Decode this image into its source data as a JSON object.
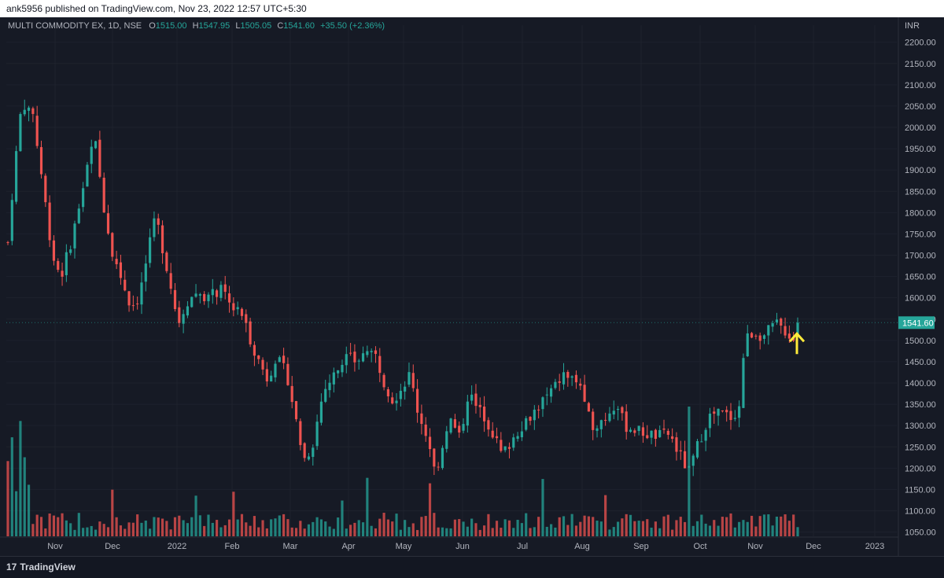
{
  "header": {
    "published_text": "ank5956 published on TradingView.com, Nov 23, 2022 12:57 UTC+5:30"
  },
  "legend": {
    "symbol": "MULTI COMMODITY EX, 1D, NSE",
    "o_label": "O",
    "o_value": "1515.00",
    "h_label": "H",
    "h_value": "1547.95",
    "l_label": "L",
    "l_value": "1505.05",
    "c_label": "C",
    "c_value": "1541.60",
    "change": "+35.50 (+2.36%)"
  },
  "footer": {
    "brand": "TradingView",
    "brand_mark": "17"
  },
  "colors": {
    "up": "#26a69a",
    "down": "#ef5350",
    "background": "#161a25",
    "grid": "#1e222d",
    "text": "#b2b5be",
    "arrow": "#ffeb3b"
  },
  "chart_data": {
    "type": "candlestick",
    "currency": "INR",
    "last_price": "1541.60",
    "ylim": [
      1040,
      2240
    ],
    "y_ticks": [
      1050,
      1100,
      1150,
      1200,
      1250,
      1300,
      1350,
      1400,
      1450,
      1500,
      1550,
      1600,
      1650,
      1700,
      1750,
      1800,
      1850,
      1900,
      1950,
      2000,
      2050,
      2100,
      2150,
      2200
    ],
    "x_ticks": [
      "Nov",
      "Dec",
      "2022",
      "Feb",
      "Mar",
      "Apr",
      "May",
      "Jun",
      "Jul",
      "Aug",
      "Sep",
      "Oct",
      "Nov",
      "Dec",
      "2023"
    ],
    "price_path": [
      {
        "day": 0,
        "close": 1730
      },
      {
        "day": 2,
        "close": 1880
      },
      {
        "day": 5,
        "close": 2060
      },
      {
        "day": 9,
        "close": 2030
      },
      {
        "day": 12,
        "close": 1890
      },
      {
        "day": 16,
        "close": 1700
      },
      {
        "day": 19,
        "close": 1650
      },
      {
        "day": 23,
        "close": 1740
      },
      {
        "day": 27,
        "close": 1860
      },
      {
        "day": 31,
        "close": 1980
      },
      {
        "day": 34,
        "close": 1830
      },
      {
        "day": 37,
        "close": 1720
      },
      {
        "day": 41,
        "close": 1640
      },
      {
        "day": 44,
        "close": 1580
      },
      {
        "day": 47,
        "close": 1600
      },
      {
        "day": 50,
        "close": 1700
      },
      {
        "day": 53,
        "close": 1790
      },
      {
        "day": 56,
        "close": 1700
      },
      {
        "day": 58,
        "close": 1640
      },
      {
        "day": 61,
        "close": 1540
      },
      {
        "day": 64,
        "close": 1590
      },
      {
        "day": 68,
        "close": 1615
      },
      {
        "day": 72,
        "close": 1600
      },
      {
        "day": 76,
        "close": 1620
      },
      {
        "day": 80,
        "close": 1580
      },
      {
        "day": 84,
        "close": 1560
      },
      {
        "day": 87,
        "close": 1500
      },
      {
        "day": 90,
        "close": 1450
      },
      {
        "day": 93,
        "close": 1410
      },
      {
        "day": 96,
        "close": 1460
      },
      {
        "day": 100,
        "close": 1420
      },
      {
        "day": 103,
        "close": 1320
      },
      {
        "day": 106,
        "close": 1220
      },
      {
        "day": 109,
        "close": 1250
      },
      {
        "day": 113,
        "close": 1380
      },
      {
        "day": 117,
        "close": 1420
      },
      {
        "day": 121,
        "close": 1460
      },
      {
        "day": 125,
        "close": 1450
      },
      {
        "day": 129,
        "close": 1480
      },
      {
        "day": 132,
        "close": 1460
      },
      {
        "day": 135,
        "close": 1400
      },
      {
        "day": 138,
        "close": 1360
      },
      {
        "day": 141,
        "close": 1390
      },
      {
        "day": 144,
        "close": 1420
      },
      {
        "day": 147,
        "close": 1330
      },
      {
        "day": 150,
        "close": 1280
      },
      {
        "day": 153,
        "close": 1190
      },
      {
        "day": 155,
        "close": 1230
      },
      {
        "day": 158,
        "close": 1320
      },
      {
        "day": 162,
        "close": 1270
      },
      {
        "day": 165,
        "close": 1380
      },
      {
        "day": 168,
        "close": 1340
      },
      {
        "day": 171,
        "close": 1320
      },
      {
        "day": 174,
        "close": 1280
      },
      {
        "day": 177,
        "close": 1230
      },
      {
        "day": 180,
        "close": 1260
      },
      {
        "day": 184,
        "close": 1300
      },
      {
        "day": 188,
        "close": 1330
      },
      {
        "day": 192,
        "close": 1360
      },
      {
        "day": 196,
        "close": 1390
      },
      {
        "day": 199,
        "close": 1420
      },
      {
        "day": 202,
        "close": 1410
      },
      {
        "day": 205,
        "close": 1400
      },
      {
        "day": 207,
        "close": 1330
      },
      {
        "day": 210,
        "close": 1300
      },
      {
        "day": 214,
        "close": 1320
      },
      {
        "day": 218,
        "close": 1350
      },
      {
        "day": 221,
        "close": 1300
      },
      {
        "day": 225,
        "close": 1290
      },
      {
        "day": 229,
        "close": 1280
      },
      {
        "day": 233,
        "close": 1275
      },
      {
        "day": 237,
        "close": 1280
      },
      {
        "day": 240,
        "close": 1240
      },
      {
        "day": 244,
        "close": 1190
      },
      {
        "day": 247,
        "close": 1250
      },
      {
        "day": 251,
        "close": 1320
      },
      {
        "day": 255,
        "close": 1330
      },
      {
        "day": 259,
        "close": 1320
      },
      {
        "day": 262,
        "close": 1340
      },
      {
        "day": 264,
        "close": 1500
      },
      {
        "day": 267,
        "close": 1520
      },
      {
        "day": 271,
        "close": 1510
      },
      {
        "day": 275,
        "close": 1540
      },
      {
        "day": 279,
        "close": 1520
      },
      {
        "day": 282,
        "close": 1500
      },
      {
        "day": 283,
        "close": 1541.6
      }
    ]
  }
}
